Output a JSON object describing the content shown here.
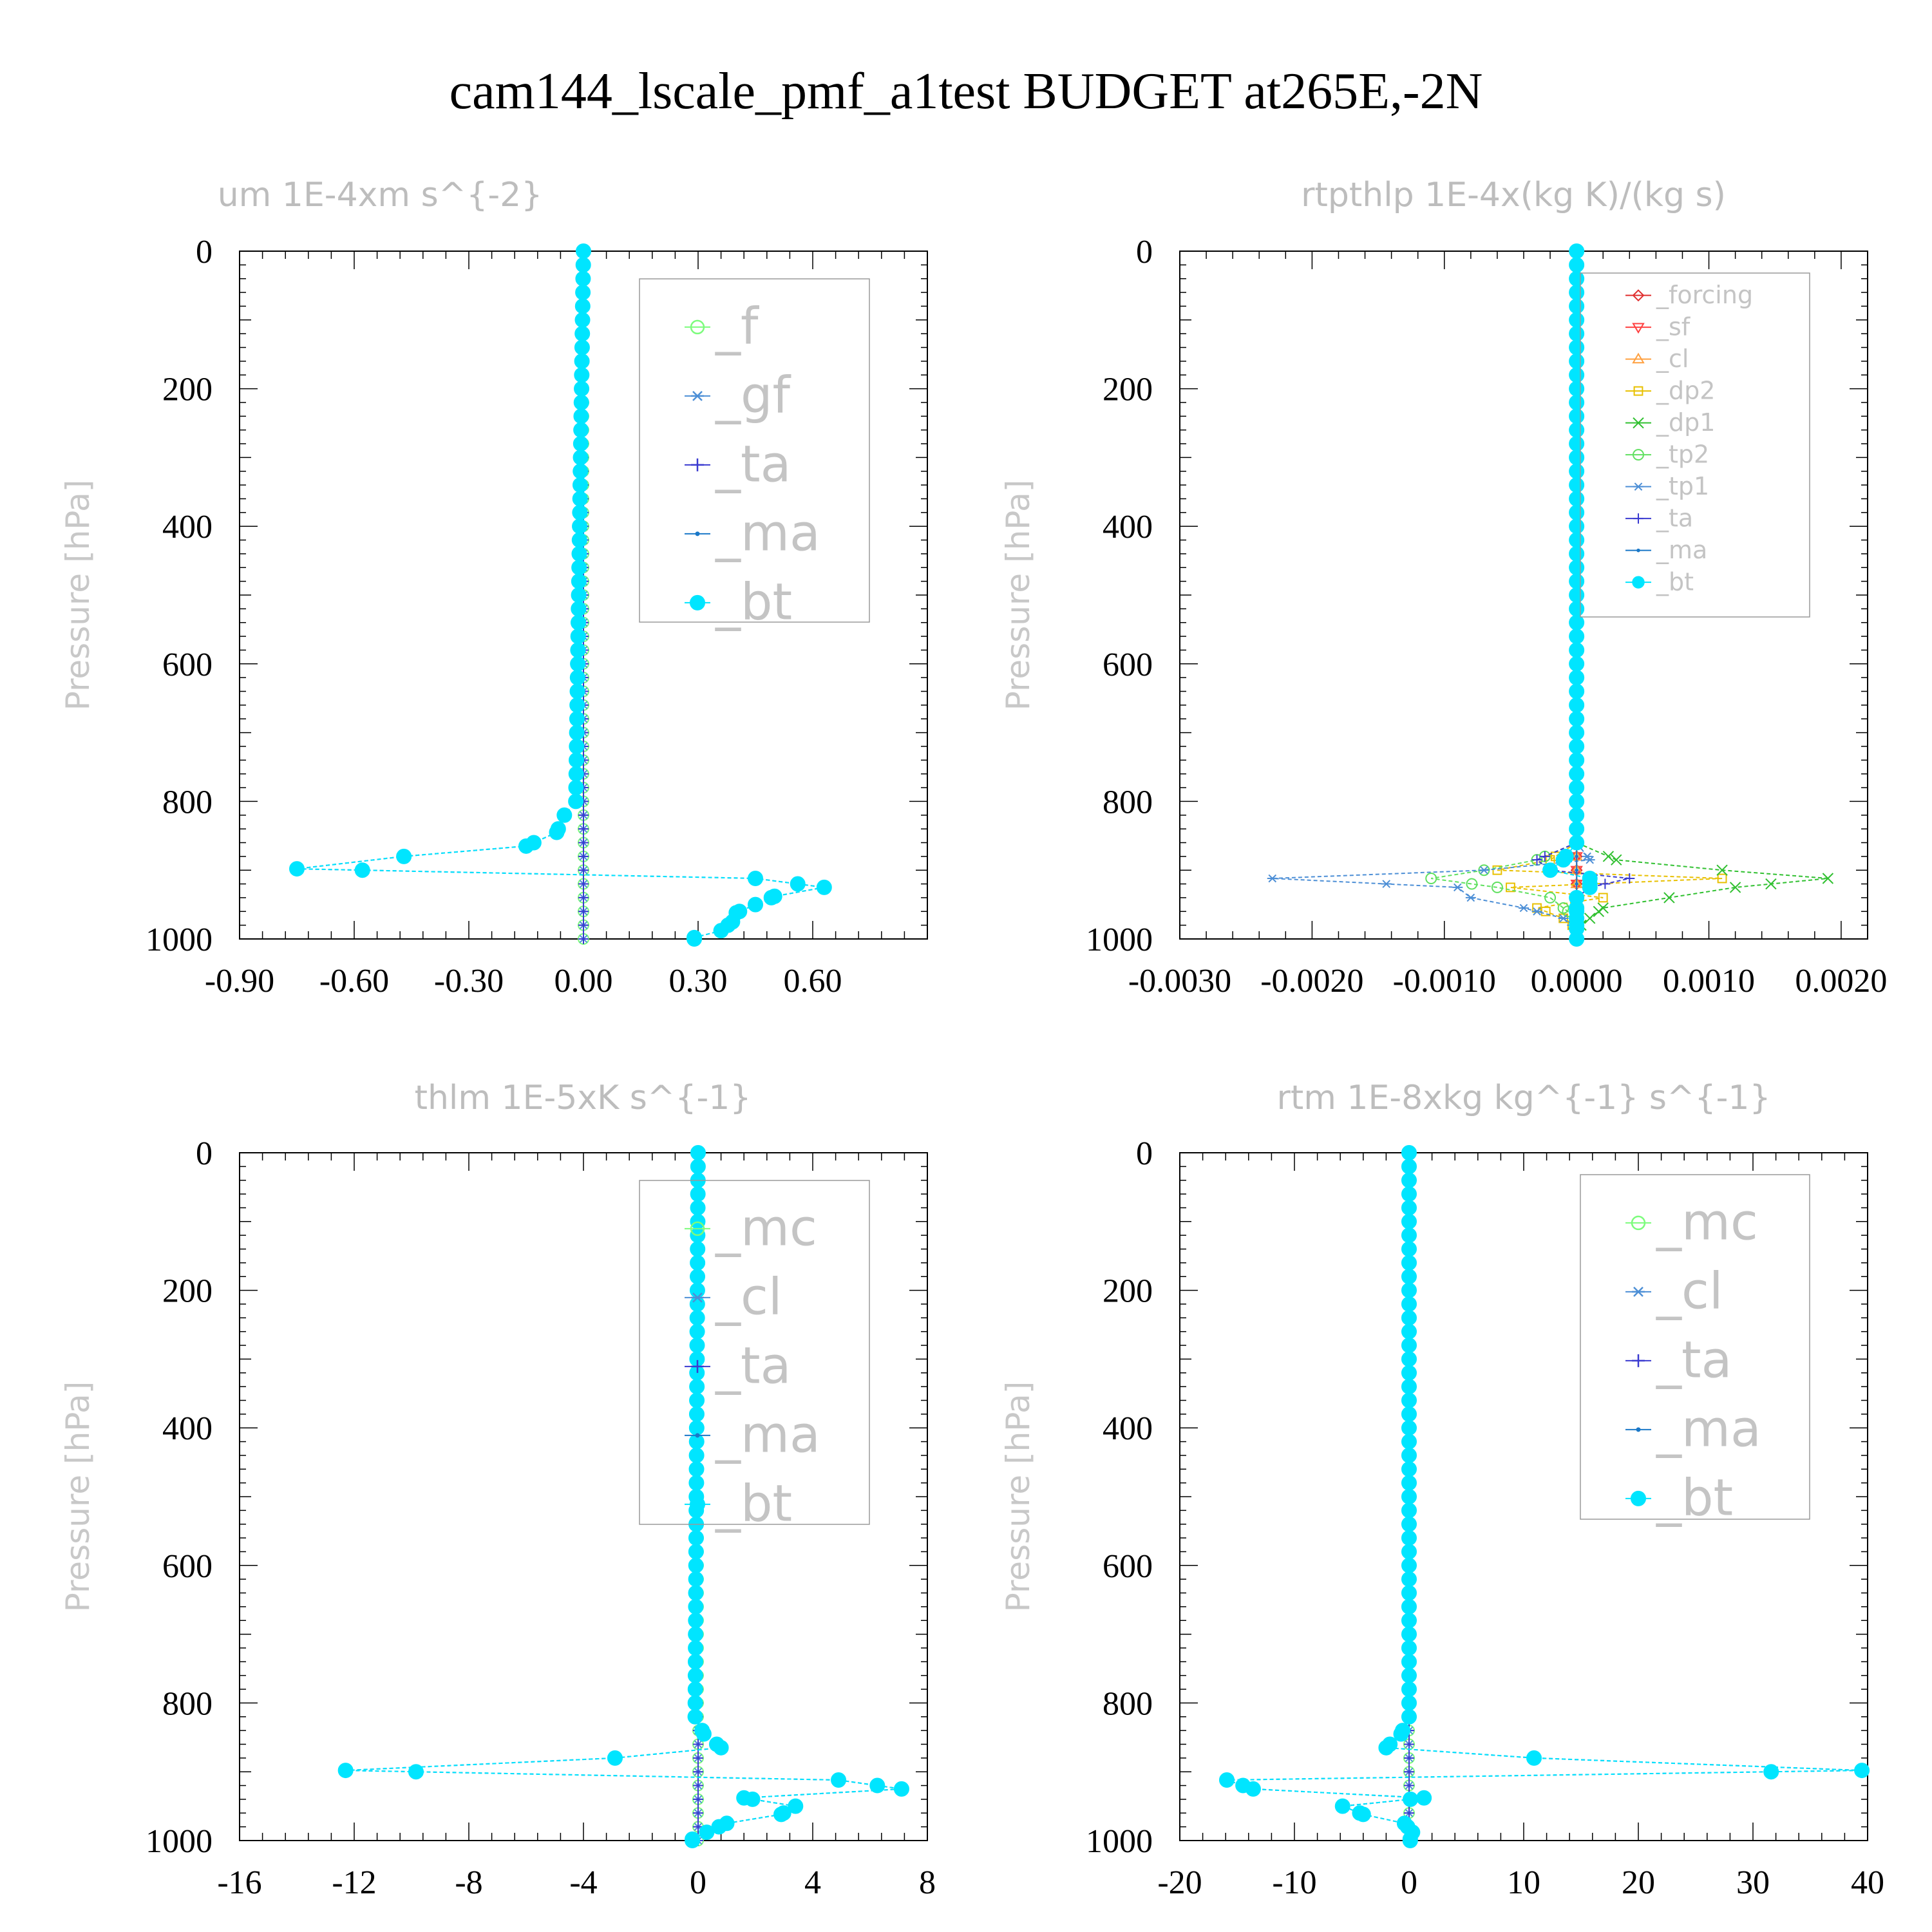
{
  "figure": {
    "title": "cam144_lscale_pmf_a1test  BUDGET at265E,-2N"
  },
  "chart_data": [
    {
      "type": "line",
      "title": "um  1E-4xm s^{-2}",
      "ylabel": "Pressure [hPa]",
      "xlabel": "",
      "xlim": [
        -0.9,
        0.9
      ],
      "ylim": [
        1000,
        0
      ],
      "x_ticks": [
        "-0.90",
        "-0.60",
        "-0.30",
        "0.00",
        "0.30",
        "0.60"
      ],
      "x_tick_values": [
        -0.9,
        -0.6,
        -0.3,
        0.0,
        0.3,
        0.6
      ],
      "y_ticks": [
        "0",
        "200",
        "400",
        "600",
        "800",
        "1000"
      ],
      "y_tick_values": [
        0,
        200,
        400,
        600,
        800,
        1000
      ],
      "legend": [
        "_f",
        "_gf",
        "_ta",
        "_ma",
        "_bt"
      ],
      "legend_position": "top-right",
      "series": [
        {
          "name": "_f",
          "color": "#7cfc7c",
          "marker": "circle",
          "p": [
            0,
            1000
          ],
          "x": [
            0,
            0
          ]
        },
        {
          "name": "_gf",
          "color": "#4d8fd6",
          "marker": "asterisk",
          "p": [
            0,
            1000
          ],
          "x": [
            0,
            0
          ]
        },
        {
          "name": "_ta",
          "color": "#3a3ad0",
          "marker": "plus",
          "p": [
            0,
            1000
          ],
          "x": [
            0,
            0
          ]
        },
        {
          "name": "_ma",
          "color": "#1a78c8",
          "marker": "dot",
          "p": [
            0,
            800,
            820,
            845,
            865,
            880,
            898,
            912,
            925,
            938,
            950,
            962,
            975,
            988,
            998
          ],
          "x": [
            0,
            -0.02,
            -0.05,
            -0.07,
            -0.15,
            -0.47,
            -0.75,
            0.45,
            0.63,
            0.5,
            0.45,
            0.4,
            0.39,
            0.36,
            0.29
          ]
        },
        {
          "name": "_bt",
          "color": "#00e5ff",
          "marker": "filled-circle",
          "p": [
            0,
            800,
            820,
            845,
            865,
            880,
            898,
            912,
            925,
            938,
            950,
            962,
            975,
            988,
            998
          ],
          "x": [
            0,
            -0.02,
            -0.05,
            -0.07,
            -0.15,
            -0.47,
            -0.75,
            0.45,
            0.63,
            0.5,
            0.45,
            0.4,
            0.39,
            0.36,
            0.29
          ]
        }
      ]
    },
    {
      "type": "line",
      "title": "rtpthlp  1E-4x(kg K)/(kg s)",
      "ylabel": "Pressure [hPa]",
      "xlabel": "",
      "xlim": [
        -0.003,
        0.0022
      ],
      "ylim": [
        1000,
        0
      ],
      "x_ticks": [
        "-0.0030",
        "-0.0020",
        "-0.0010",
        "0.0000",
        "0.0010",
        "0.0020"
      ],
      "x_tick_values": [
        -0.003,
        -0.002,
        -0.001,
        0.0,
        0.001,
        0.002
      ],
      "y_ticks": [
        "0",
        "200",
        "400",
        "600",
        "800",
        "1000"
      ],
      "y_tick_values": [
        0,
        200,
        400,
        600,
        800,
        1000
      ],
      "legend": [
        "_forcing",
        "_sf",
        "_cl",
        "_dp2",
        "_dp1",
        "_tp2",
        "_tp1",
        "_ta",
        "_ma",
        "_bt"
      ],
      "legend_position": "top-right",
      "series": [
        {
          "name": "_forcing",
          "color": "#e03030",
          "marker": "diamond",
          "p": [
            0,
            1000
          ],
          "x": [
            0,
            0
          ]
        },
        {
          "name": "_sf",
          "color": "#ff4040",
          "marker": "triangle-down",
          "p": [
            0,
            1000
          ],
          "x": [
            0,
            0
          ]
        },
        {
          "name": "_cl",
          "color": "#ffa040",
          "marker": "triangle-up",
          "p": [
            0,
            1000
          ],
          "x": [
            0,
            0
          ]
        },
        {
          "name": "_dp2",
          "color": "#e8c000",
          "marker": "square",
          "p": [
            0,
            860,
            885,
            900,
            912,
            925,
            940,
            955,
            970,
            985,
            1000
          ],
          "x": [
            0,
            0.0,
            -0.0002,
            -0.0006,
            0.0011,
            -0.0005,
            0.0002,
            -0.0003,
            -0.0001,
            0.0,
            0
          ]
        },
        {
          "name": "_dp1",
          "color": "#30c030",
          "marker": "x",
          "p": [
            0,
            860,
            885,
            900,
            912,
            925,
            940,
            955,
            970,
            985,
            1000
          ],
          "x": [
            0,
            0.0,
            0.0003,
            0.0011,
            0.0019,
            0.0012,
            0.0007,
            0.0002,
            0.0001,
            0.0,
            0
          ]
        },
        {
          "name": "_tp2",
          "color": "#60e060",
          "marker": "circle",
          "p": [
            0,
            860,
            885,
            900,
            912,
            925,
            940,
            955,
            970,
            985,
            1000
          ],
          "x": [
            0,
            0.0,
            -0.0003,
            -0.0007,
            -0.0011,
            -0.0006,
            -0.0002,
            -0.0001,
            0.0,
            0.0,
            0
          ]
        },
        {
          "name": "_tp1",
          "color": "#4d8fd6",
          "marker": "asterisk",
          "p": [
            0,
            860,
            885,
            900,
            912,
            925,
            940,
            955,
            970,
            985,
            1000
          ],
          "x": [
            0,
            0.0,
            0.0001,
            -0.0007,
            -0.0023,
            -0.0009,
            -0.0008,
            -0.0004,
            -0.0001,
            0.0,
            0
          ]
        },
        {
          "name": "_ta",
          "color": "#3a3ad0",
          "marker": "plus",
          "p": [
            0,
            860,
            885,
            900,
            912,
            925,
            940,
            955,
            970,
            985,
            1000
          ],
          "x": [
            0,
            0.0,
            -0.0003,
            -0.0002,
            0.0004,
            0.0001,
            0.0,
            0.0,
            0.0,
            0.0,
            0
          ]
        },
        {
          "name": "_ma",
          "color": "#1a78c8",
          "marker": "dot",
          "p": [
            0,
            1000
          ],
          "x": [
            0,
            0
          ]
        },
        {
          "name": "_bt",
          "color": "#00e5ff",
          "marker": "filled-circle",
          "p": [
            0,
            860,
            885,
            900,
            912,
            925,
            940,
            955,
            970,
            985,
            1000
          ],
          "x": [
            0,
            0.0,
            -0.0001,
            -0.0002,
            0.0001,
            0.0001,
            0.0,
            0.0,
            0.0,
            0.0,
            0
          ]
        }
      ]
    },
    {
      "type": "line",
      "title": "thlm  1E-5xK s^{-1}",
      "ylabel": "Pressure [hPa]",
      "xlabel": "",
      "xlim": [
        -16,
        8
      ],
      "ylim": [
        1000,
        0
      ],
      "x_ticks": [
        "-16",
        "-12",
        "-8",
        "-4",
        "0",
        "4",
        "8"
      ],
      "x_tick_values": [
        -16,
        -12,
        -8,
        -4,
        0,
        4,
        8
      ],
      "y_ticks": [
        "0",
        "200",
        "400",
        "600",
        "800",
        "1000"
      ],
      "y_tick_values": [
        0,
        200,
        400,
        600,
        800,
        1000
      ],
      "legend": [
        "_mc",
        "_cl",
        "_ta",
        "_ma",
        "_bt"
      ],
      "legend_position": "top-right",
      "series": [
        {
          "name": "_mc",
          "color": "#7cfc7c",
          "marker": "circle",
          "p": [
            0,
            1000
          ],
          "x": [
            0,
            0
          ]
        },
        {
          "name": "_cl",
          "color": "#4d8fd6",
          "marker": "asterisk",
          "p": [
            0,
            1000
          ],
          "x": [
            0,
            0
          ]
        },
        {
          "name": "_ta",
          "color": "#3a3ad0",
          "marker": "plus",
          "p": [
            0,
            1000
          ],
          "x": [
            0,
            0
          ]
        },
        {
          "name": "_ma",
          "color": "#1a78c8",
          "marker": "dot",
          "p": [
            0,
            820,
            845,
            865,
            880,
            898,
            912,
            925,
            938,
            950,
            962,
            975,
            988,
            998
          ],
          "x": [
            0,
            -0.1,
            0.2,
            0.8,
            -2.9,
            -12.3,
            4.9,
            7.1,
            1.6,
            3.4,
            2.9,
            1.0,
            0.3,
            -0.2
          ]
        },
        {
          "name": "_bt",
          "color": "#00e5ff",
          "marker": "filled-circle",
          "p": [
            0,
            820,
            845,
            865,
            880,
            898,
            912,
            925,
            938,
            950,
            962,
            975,
            988,
            998
          ],
          "x": [
            0,
            -0.1,
            0.2,
            0.8,
            -2.9,
            -12.3,
            4.9,
            7.1,
            1.6,
            3.4,
            2.9,
            1.0,
            0.3,
            -0.2
          ]
        }
      ]
    },
    {
      "type": "line",
      "title": "rtm  1E-8xkg kg^{-1} s^{-1}",
      "ylabel": "Pressure [hPa]",
      "xlabel": "",
      "xlim": [
        -20,
        40
      ],
      "ylim": [
        1000,
        0
      ],
      "x_ticks": [
        "-20",
        "-10",
        "0",
        "10",
        "20",
        "30",
        "40"
      ],
      "x_tick_values": [
        -20,
        -10,
        0,
        10,
        20,
        30,
        40
      ],
      "y_ticks": [
        "0",
        "200",
        "400",
        "600",
        "800",
        "1000"
      ],
      "y_tick_values": [
        0,
        200,
        400,
        600,
        800,
        1000
      ],
      "legend": [
        "_mc",
        "_cl",
        "_ta",
        "_ma",
        "_bt"
      ],
      "legend_position": "top-right",
      "series": [
        {
          "name": "_mc",
          "color": "#7cfc7c",
          "marker": "circle",
          "p": [
            0,
            1000
          ],
          "x": [
            0,
            0
          ]
        },
        {
          "name": "_cl",
          "color": "#4d8fd6",
          "marker": "asterisk",
          "p": [
            0,
            1000
          ],
          "x": [
            0,
            0
          ]
        },
        {
          "name": "_ta",
          "color": "#3a3ad0",
          "marker": "plus",
          "p": [
            0,
            1000
          ],
          "x": [
            0,
            0
          ]
        },
        {
          "name": "_ma",
          "color": "#1a78c8",
          "marker": "dot",
          "p": [
            0,
            820,
            845,
            865,
            880,
            898,
            912,
            925,
            938,
            950,
            962,
            975,
            988,
            998
          ],
          "x": [
            0,
            0.0,
            -0.7,
            -2.0,
            10.9,
            39.5,
            -15.9,
            -13.6,
            1.3,
            -5.8,
            -4.0,
            -0.4,
            0.3,
            0.1
          ]
        },
        {
          "name": "_bt",
          "color": "#00e5ff",
          "marker": "filled-circle",
          "p": [
            0,
            820,
            845,
            865,
            880,
            898,
            912,
            925,
            938,
            950,
            962,
            975,
            988,
            998
          ],
          "x": [
            0,
            0.0,
            -0.7,
            -2.0,
            10.9,
            39.5,
            -15.9,
            -13.6,
            1.3,
            -5.8,
            -4.0,
            -0.4,
            0.3,
            0.1
          ]
        }
      ]
    }
  ]
}
